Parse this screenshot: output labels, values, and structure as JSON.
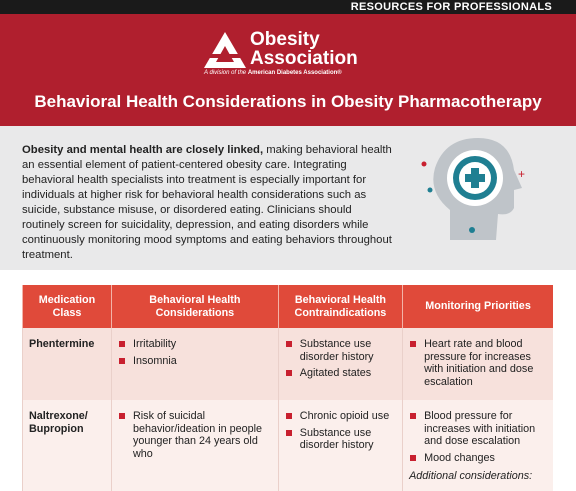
{
  "header": {
    "top_label": "RESOURCES FOR PROFESSIONALS",
    "logo": {
      "line1": "Obesity",
      "line2": "Association",
      "tagline_prefix": "A division of the",
      "tagline_org": "American Diabetes Association®"
    },
    "title": "Behavioral Health Considerations in Obesity Pharmacotherapy"
  },
  "intro": {
    "bold": "Obesity and mental health are closely linked,",
    "rest": " making behavioral health an essential element of patient-centered obesity care. Integrating behavioral health specialists into treatment is especially important for individuals at higher risk for behavioral health considerations such as suicide, substance misuse, or disordered eating. Clinicians should routinely screen for suicidality, depression, and eating disorders while continuously monitoring mood symptoms and eating behaviors throughout treatment."
  },
  "table": {
    "columns": [
      "Medication Class",
      "Behavioral Health Considerations",
      "Behavioral Health Contraindications",
      "Monitoring Priorities"
    ],
    "rows": [
      {
        "name": "Phentermine",
        "considerations": [
          "Irritability",
          "Insomnia"
        ],
        "contraindications": [
          "Substance use disorder history",
          "Agitated states"
        ],
        "monitoring": [
          "Heart rate and blood pressure for increases with initiation and dose escalation"
        ]
      },
      {
        "name": "Naltrexone/ Bupropion",
        "considerations": [
          "Risk of suicidal behavior/ideation in people younger than 24 years old who"
        ],
        "contraindications": [
          "Chronic opioid use",
          "Substance use disorder history"
        ],
        "monitoring": [
          "Blood pressure for increases with initiation and dose escalation",
          "Mood changes"
        ],
        "note": "Additional considerations:"
      }
    ]
  }
}
